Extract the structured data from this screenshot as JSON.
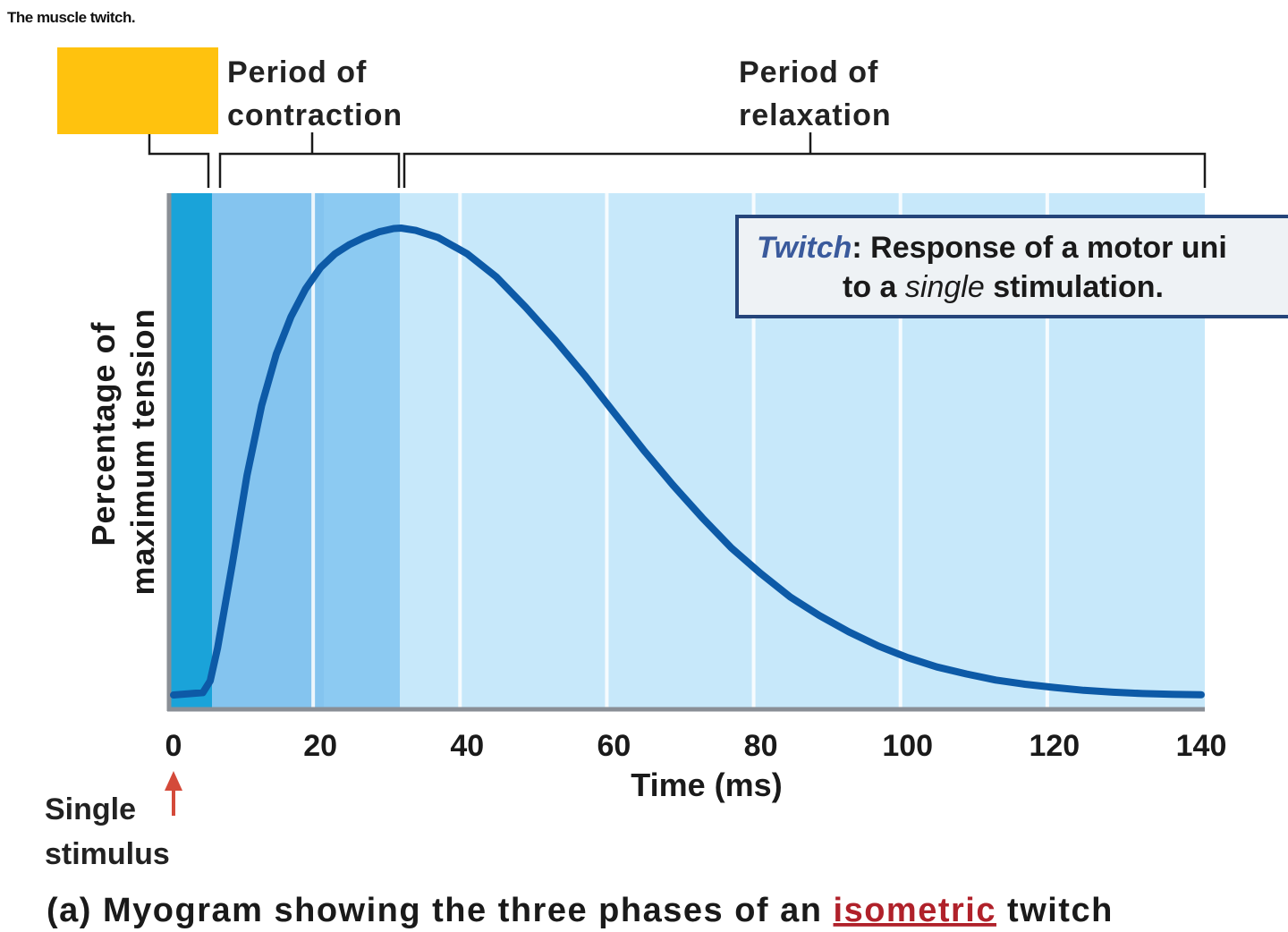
{
  "header": {
    "title": "The muscle twitch."
  },
  "chart_data": {
    "type": "line",
    "x_ticks": [
      0,
      20,
      40,
      60,
      80,
      100,
      120,
      140
    ],
    "xlim": [
      0,
      140
    ],
    "ylim": [
      0,
      100
    ],
    "xlabel": "Time (ms)",
    "ylabel_lines": [
      "Percentage of",
      "maximum tension"
    ],
    "grid": "vertical",
    "series": [
      {
        "color": "#0d5aa7",
        "points": [
          [
            0,
            0
          ],
          [
            4,
            0.5
          ],
          [
            5,
            3
          ],
          [
            6,
            10
          ],
          [
            8,
            28
          ],
          [
            10,
            47
          ],
          [
            12,
            62
          ],
          [
            14,
            73
          ],
          [
            16,
            81
          ],
          [
            18,
            87
          ],
          [
            20,
            91.5
          ],
          [
            22,
            94.5
          ],
          [
            24,
            96.5
          ],
          [
            26,
            98
          ],
          [
            28,
            99.2
          ],
          [
            30,
            99.9
          ],
          [
            31,
            100
          ],
          [
            33,
            99.5
          ],
          [
            36,
            98
          ],
          [
            40,
            94.5
          ],
          [
            44,
            89.5
          ],
          [
            48,
            83
          ],
          [
            52,
            76
          ],
          [
            56,
            68.5
          ],
          [
            60,
            60.5
          ],
          [
            64,
            52.5
          ],
          [
            68,
            45
          ],
          [
            72,
            38
          ],
          [
            76,
            31.5
          ],
          [
            80,
            26
          ],
          [
            84,
            21
          ],
          [
            88,
            17
          ],
          [
            92,
            13.5
          ],
          [
            96,
            10.5
          ],
          [
            100,
            8
          ],
          [
            104,
            6
          ],
          [
            108,
            4.5
          ],
          [
            112,
            3.2
          ],
          [
            116,
            2.3
          ],
          [
            120,
            1.6
          ],
          [
            124,
            1
          ],
          [
            128,
            0.6
          ],
          [
            132,
            0.3
          ],
          [
            136,
            0.15
          ],
          [
            140,
            0.05
          ]
        ]
      }
    ],
    "phases": [
      {
        "label_lines": [
          "",
          ""
        ],
        "start": 0,
        "end": 5,
        "color": "#ffc20e",
        "band_color": "#1aa3d9"
      },
      {
        "label_lines": [
          "Period of",
          "contraction"
        ],
        "start": 5,
        "end": 31,
        "color": "#8ccaf2",
        "band_color": "#8ccaf2"
      },
      {
        "label_lines": [
          "Period of",
          "relaxation"
        ],
        "start": 31,
        "end": 140,
        "color": "#c7e8fa",
        "band_color": "#c7e8fa"
      }
    ],
    "stimulus": {
      "label_lines": [
        "Single",
        "stimulus"
      ],
      "x": 0,
      "arrow_color": "#d44a3a"
    },
    "callout": {
      "term": "Twitch",
      "text_line1": ":  Response of a motor uni",
      "text_line2_before": "to a ",
      "text_line2_emph": "single",
      "text_line2_after": " stimulation."
    },
    "caption": {
      "before": "(a) Myogram showing the three phases of an ",
      "link": "isometric",
      "after": " twitch"
    }
  }
}
